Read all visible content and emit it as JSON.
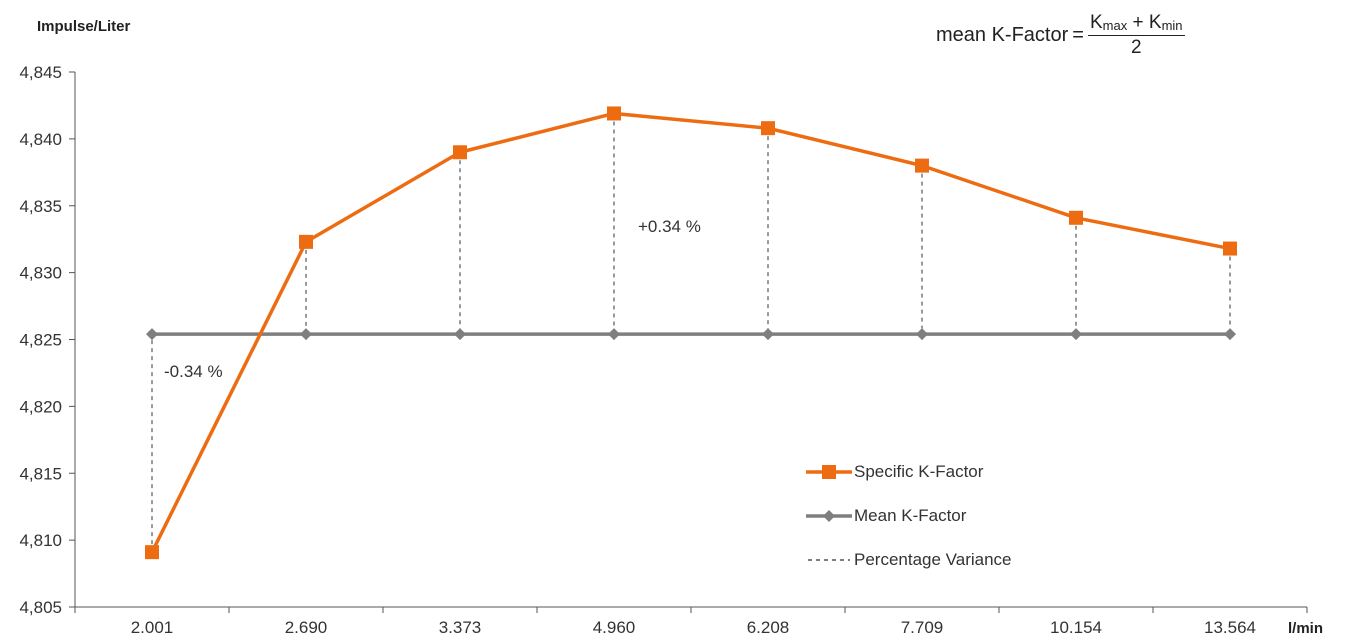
{
  "chart_data": {
    "type": "line",
    "ylabel": "Impulse/Liter",
    "xlabel": "l/min",
    "categories": [
      "2.001",
      "2.690",
      "3.373",
      "4.960",
      "6.208",
      "7.709",
      "10.154",
      "13.564"
    ],
    "ylim": [
      4805,
      4845
    ],
    "yticks": [
      4805,
      4810,
      4815,
      4820,
      4825,
      4830,
      4835,
      4840,
      4845
    ],
    "ytick_labels": [
      "4,805",
      "4,810",
      "4,815",
      "4,820",
      "4,825",
      "4,830",
      "4,835",
      "4,840",
      "4,845"
    ],
    "series": [
      {
        "name": "Specific K-Factor",
        "color": "#ed6c12",
        "marker": "square",
        "values": [
          4809.1,
          4832.3,
          4839.0,
          4841.9,
          4840.8,
          4838.0,
          4834.1,
          4831.8
        ]
      },
      {
        "name": "Mean K-Factor",
        "color": "#7f7f7f",
        "marker": "diamond",
        "values": [
          4825.4,
          4825.4,
          4825.4,
          4825.4,
          4825.4,
          4825.4,
          4825.4,
          4825.4
        ]
      }
    ],
    "variance_series_name": "Percentage Variance",
    "annotations": {
      "plus": "+0.34 %",
      "minus": "-0.34 %"
    },
    "formula": {
      "lhs": "mean K-Factor",
      "eq": "=",
      "k1": "K",
      "k1_sub": "max",
      "plus": "+",
      "k2": "K",
      "k2_sub": "min",
      "den": "2"
    },
    "grid": false,
    "legend": "lower-right"
  }
}
